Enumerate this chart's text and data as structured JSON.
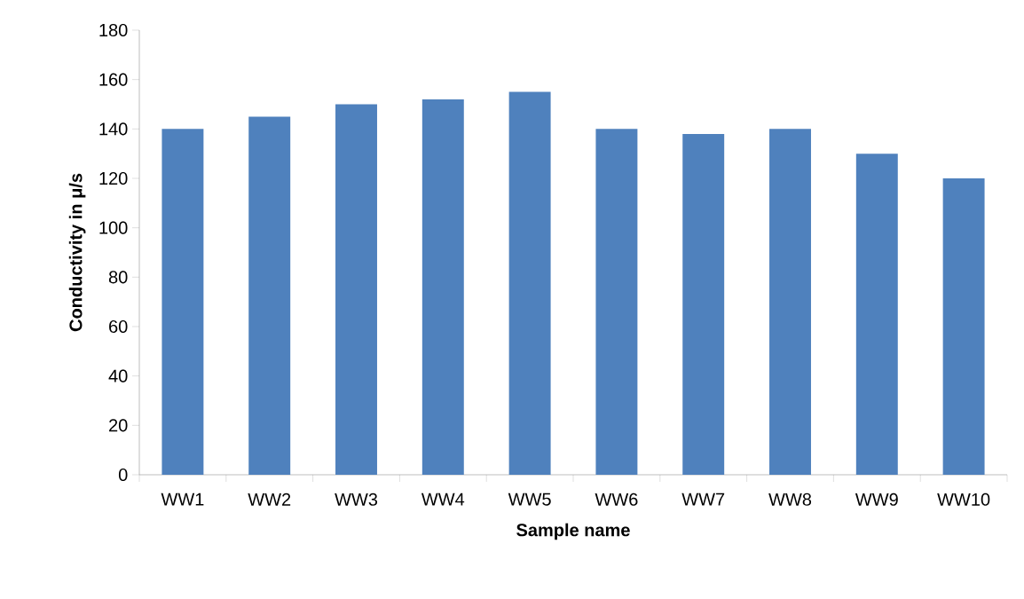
{
  "chart_data": {
    "type": "bar",
    "xlabel": "Sample name",
    "ylabel": "Conductivity in μ/s",
    "categories": [
      "WW1",
      "WW2",
      "WW3",
      "WW4",
      "WW5",
      "WW6",
      "WW7",
      "WW8",
      "WW9",
      "WW10"
    ],
    "values": [
      140,
      145,
      150,
      152,
      155,
      140,
      138,
      140,
      130,
      120
    ],
    "color": "#4f81bd",
    "ylim": [
      0,
      180
    ],
    "yticks": [
      0,
      20,
      40,
      60,
      80,
      100,
      120,
      140,
      160,
      180
    ]
  }
}
